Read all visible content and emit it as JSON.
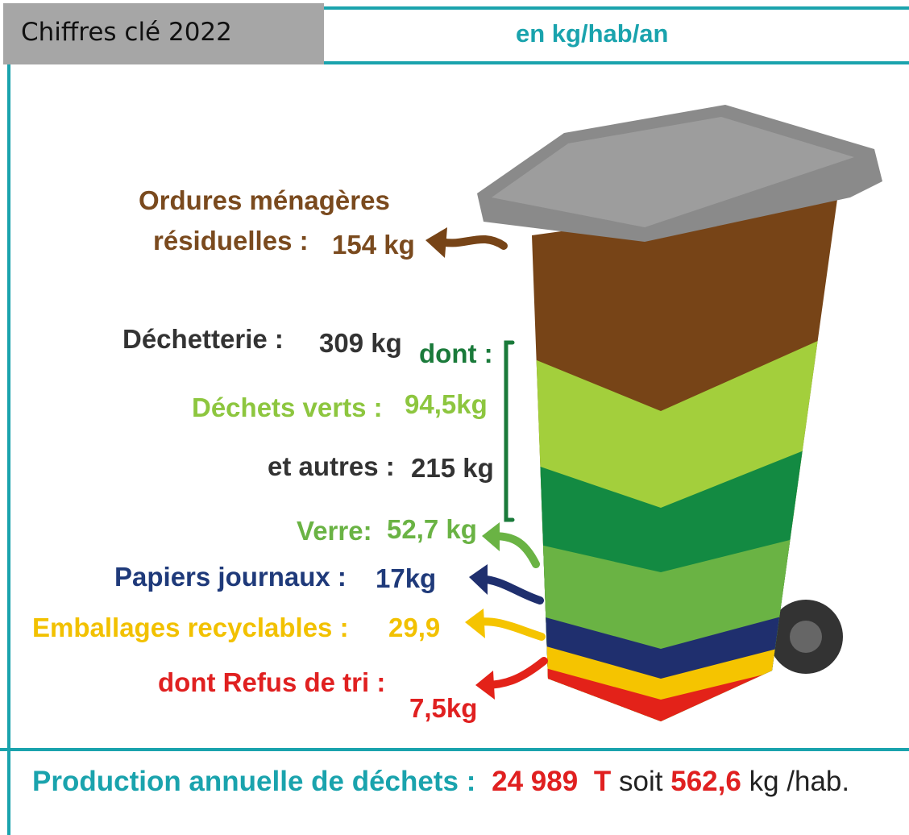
{
  "header": {
    "badge": "Chiffres clé 2022",
    "unit": "en kg/hab/an"
  },
  "items": {
    "omr": {
      "label": [
        "Ordures ménagères",
        "résiduelles :"
      ],
      "value": "154 kg"
    },
    "dechetterie": {
      "label": "Déchetterie :",
      "value": "309 kg",
      "dont": "dont :"
    },
    "verts": {
      "label": "Déchets verts :",
      "value": "94,5kg"
    },
    "autres": {
      "label": "et autres :",
      "value": "215 kg"
    },
    "verre": {
      "label": "Verre:",
      "value": "52,7 kg"
    },
    "papiers": {
      "label": "Papiers journaux :",
      "value": "17kg"
    },
    "emballages": {
      "label": "Emballages recyclables :",
      "value": "29,9"
    },
    "refus": {
      "label": "dont Refus de tri :",
      "value": "7,5kg"
    }
  },
  "footer": {
    "label": "Production annuelle de déchets :",
    "tonnage": "24 989",
    "tonnage_unit": "T",
    "link": "soit",
    "per_capita": "562,6",
    "per_capita_unit": "kg /hab."
  }
}
